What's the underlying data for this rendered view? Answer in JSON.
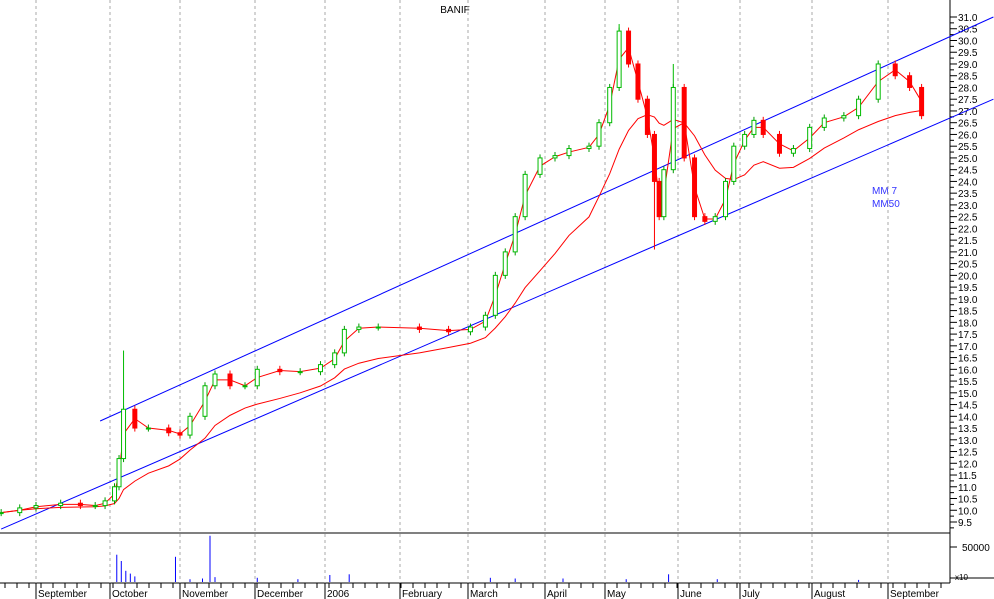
{
  "chart_data": {
    "type": "candlestick",
    "title": "BANIF",
    "ylim": [
      9.5,
      31.0
    ],
    "ytick_step": 0.5,
    "grid": "vertical dashed at month starts",
    "months": [
      {
        "label": "September",
        "date": "2005-09-01"
      },
      {
        "label": "October",
        "date": "2005-10-01"
      },
      {
        "label": "November",
        "date": "2005-11-01"
      },
      {
        "label": "December",
        "date": "2005-12-01"
      },
      {
        "label": "2006",
        "date": "2006-01-01"
      },
      {
        "label": "February",
        "date": "2006-02-01"
      },
      {
        "label": "March",
        "date": "2006-03-01"
      },
      {
        "label": "April",
        "date": "2006-04-01"
      },
      {
        "label": "May",
        "date": "2006-05-01"
      },
      {
        "label": "June",
        "date": "2006-06-01"
      },
      {
        "label": "July",
        "date": "2006-07-01"
      },
      {
        "label": "August",
        "date": "2006-08-01"
      },
      {
        "label": "September",
        "date": "2006-09-01"
      }
    ],
    "series": [
      {
        "dates": [
          "2005-08-17",
          "2005-08-25",
          "2005-09-01",
          "2005-09-11",
          "2005-09-19",
          "2005-09-25",
          "2005-09-29",
          "2005-10-03",
          "2005-10-05",
          "2005-10-07",
          "2005-10-12",
          "2005-10-18",
          "2005-10-27",
          "2005-11-01",
          "2005-11-05",
          "2005-11-11",
          "2005-11-15",
          "2005-11-21",
          "2005-11-27",
          "2005-12-02",
          "2005-12-12",
          "2005-12-21",
          "2005-12-30",
          "2006-01-05",
          "2006-01-09",
          "2006-01-15",
          "2006-01-23",
          "2006-02-09",
          "2006-02-21",
          "2006-03-02",
          "2006-03-08",
          "2006-03-12",
          "2006-03-16",
          "2006-03-20",
          "2006-03-24",
          "2006-03-30",
          "2006-04-06",
          "2006-04-13",
          "2006-04-23",
          "2006-04-28",
          "2006-05-03",
          "2006-05-07",
          "2006-05-11",
          "2006-05-15",
          "2006-05-19",
          "2006-05-22",
          "2006-05-24",
          "2006-05-26",
          "2006-05-30",
          "2006-06-04",
          "2006-06-09",
          "2006-06-14",
          "2006-06-19",
          "2006-06-24",
          "2006-06-28",
          "2006-07-03",
          "2006-07-07",
          "2006-07-11",
          "2006-07-18",
          "2006-07-24",
          "2006-07-31",
          "2006-08-06",
          "2006-08-14",
          "2006-08-20",
          "2006-08-28",
          "2006-09-04",
          "2006-09-10",
          "2006-09-15"
        ],
        "close": [
          9.9,
          10.1,
          10.2,
          10.3,
          10.2,
          10.2,
          10.4,
          11.0,
          12.2,
          14.3,
          13.5,
          13.5,
          13.3,
          13.2,
          14.0,
          15.3,
          15.8,
          15.3,
          15.3,
          16.0,
          15.9,
          15.9,
          16.2,
          16.7,
          17.7,
          17.8,
          17.8,
          17.7,
          17.6,
          17.8,
          18.3,
          20.0,
          21.0,
          22.5,
          24.3,
          25.0,
          25.1,
          25.4,
          25.5,
          26.5,
          28.0,
          30.4,
          29.0,
          27.5,
          26.0,
          24.0,
          22.5,
          24.5,
          28.0,
          25.0,
          22.5,
          22.3,
          22.5,
          24.0,
          25.5,
          26.0,
          26.6,
          26.0,
          25.2,
          25.4,
          26.3,
          26.7,
          26.8,
          27.5,
          29.0,
          28.5,
          28.0,
          26.8
        ],
        "high_spikes": [
          {
            "date": "2005-10-07",
            "value": 16.8
          },
          {
            "date": "2006-05-07",
            "value": 30.7
          },
          {
            "date": "2006-05-22",
            "value": 21.1
          },
          {
            "date": "2006-05-30",
            "value": 29.0
          }
        ]
      }
    ],
    "indicators": [
      {
        "name": "MM 7",
        "color": "#ff0000"
      },
      {
        "name": "MM50",
        "color": "#ff0000"
      }
    ],
    "trendlines": [
      {
        "from": {
          "date": "2005-09-27",
          "value": 13.8
        },
        "to": {
          "date": "2006-10-15",
          "value": 31.0
        },
        "color": "#0000ff"
      },
      {
        "from": {
          "date": "2005-08-17",
          "value": 9.2
        },
        "to": {
          "date": "2006-10-15",
          "value": 27.5
        },
        "color": "#0000ff"
      }
    ],
    "volume": {
      "tick_label": "50000",
      "unit_label": "x10",
      "tick_value": 50000,
      "bars": [
        {
          "date": "2005-10-04",
          "value": 39000
        },
        {
          "date": "2005-10-06",
          "value": 30000
        },
        {
          "date": "2005-10-08",
          "value": 16000
        },
        {
          "date": "2005-10-10",
          "value": 12000
        },
        {
          "date": "2005-10-12",
          "value": 8000
        },
        {
          "date": "2005-10-30",
          "value": 36000
        },
        {
          "date": "2005-11-05",
          "value": 4000
        },
        {
          "date": "2005-11-10",
          "value": 5000
        },
        {
          "date": "2005-11-13",
          "value": 66000
        },
        {
          "date": "2005-11-15",
          "value": 7000
        },
        {
          "date": "2005-12-02",
          "value": 6000
        },
        {
          "date": "2005-12-20",
          "value": 4000
        },
        {
          "date": "2006-01-03",
          "value": 10000
        },
        {
          "date": "2006-01-11",
          "value": 11000
        },
        {
          "date": "2006-03-10",
          "value": 6000
        },
        {
          "date": "2006-03-20",
          "value": 5000
        },
        {
          "date": "2006-04-10",
          "value": 5000
        },
        {
          "date": "2006-05-10",
          "value": 4000
        },
        {
          "date": "2006-05-28",
          "value": 11000
        },
        {
          "date": "2006-06-20",
          "value": 4000
        },
        {
          "date": "2006-08-20",
          "value": 3000
        }
      ]
    },
    "colors": {
      "up": "#00cc00",
      "down": "#ff0000",
      "ma": "#ff0000",
      "trendline": "#0000ff",
      "legend": "#3333ff",
      "volume": "#0000ff"
    }
  }
}
